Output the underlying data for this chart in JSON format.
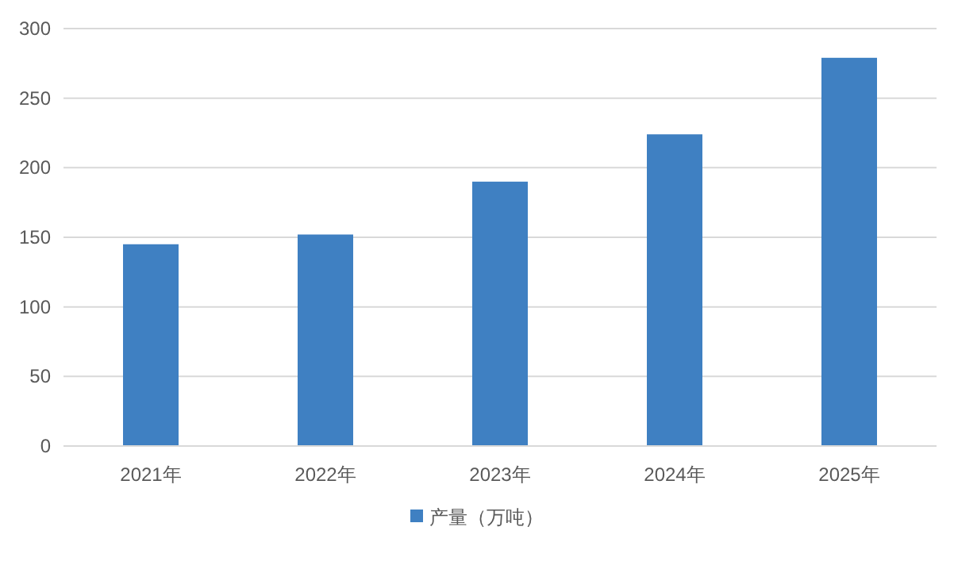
{
  "chart_data": {
    "type": "bar",
    "categories": [
      "2021年",
      "2022年",
      "2023年",
      "2024年",
      "2025年"
    ],
    "series": [
      {
        "name": "产量（万吨）",
        "color": "#3f80c2",
        "values": [
          145,
          152,
          190,
          224,
          279
        ]
      }
    ],
    "ylim": [
      0,
      300
    ],
    "yticks": [
      0,
      50,
      100,
      150,
      200,
      250,
      300
    ],
    "grid": "y",
    "legend": "bottom"
  }
}
